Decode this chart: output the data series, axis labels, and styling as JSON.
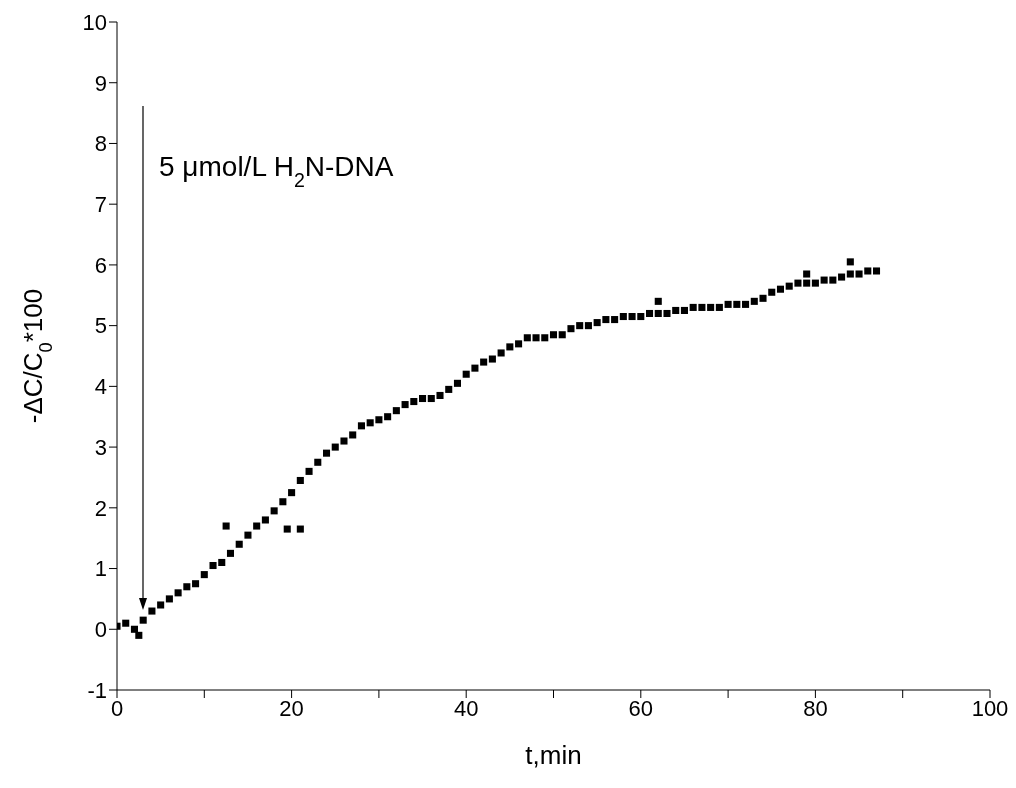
{
  "chart_data": {
    "type": "scatter",
    "xlabel": "t,min",
    "ylabel": "-ΔC/C$_{0}$*100",
    "annotations": [
      "5 μmol/L H$_{2}$N-DNA"
    ],
    "x": [
      0,
      1,
      2,
      2.5,
      3,
      4,
      5,
      6,
      7,
      8,
      9,
      10,
      11,
      12,
      12.5,
      13,
      14,
      15,
      16,
      17,
      18,
      19,
      19.5,
      20,
      21,
      21,
      22,
      23,
      24,
      25,
      26,
      27,
      28,
      29,
      30,
      31,
      32,
      33,
      34,
      35,
      36,
      37,
      38,
      39,
      40,
      41,
      42,
      43,
      44,
      45,
      46,
      47,
      48,
      49,
      50,
      51,
      52,
      53,
      54,
      55,
      56,
      57,
      58,
      59,
      60,
      61,
      62,
      62,
      63,
      64,
      65,
      66,
      67,
      68,
      69,
      70,
      71,
      72,
      73,
      74,
      75,
      76,
      77,
      78,
      79,
      79,
      80,
      81,
      82,
      83,
      84,
      84,
      85,
      86,
      87
    ],
    "values": [
      0.05,
      0.1,
      0.0,
      -0.1,
      0.15,
      0.3,
      0.4,
      0.5,
      0.6,
      0.7,
      0.75,
      0.9,
      1.05,
      1.1,
      1.7,
      1.25,
      1.4,
      1.55,
      1.7,
      1.8,
      1.95,
      2.1,
      1.65,
      2.25,
      2.45,
      1.65,
      2.6,
      2.75,
      2.9,
      3.0,
      3.1,
      3.2,
      3.35,
      3.4,
      3.45,
      3.5,
      3.6,
      3.7,
      3.75,
      3.8,
      3.8,
      3.85,
      3.95,
      4.05,
      4.2,
      4.3,
      4.4,
      4.45,
      4.55,
      4.65,
      4.7,
      4.8,
      4.8,
      4.8,
      4.85,
      4.85,
      4.95,
      5.0,
      5.0,
      5.05,
      5.1,
      5.1,
      5.15,
      5.15,
      5.15,
      5.2,
      5.2,
      5.4,
      5.2,
      5.25,
      5.25,
      5.3,
      5.3,
      5.3,
      5.3,
      5.35,
      5.35,
      5.35,
      5.4,
      5.45,
      5.55,
      5.6,
      5.65,
      5.7,
      5.7,
      5.85,
      5.7,
      5.75,
      5.75,
      5.8,
      5.85,
      6.05,
      5.85,
      5.9,
      5.9
    ],
    "color": "#000000",
    "marker": "square",
    "grid": false,
    "legend": false,
    "xlim": [
      0,
      100
    ],
    "xticks": [
      0,
      {
        "value": 10,
        "label": null
      },
      20,
      {
        "value": 30,
        "label": null
      },
      40,
      {
        "value": 50,
        "label": null
      },
      60,
      {
        "value": 70,
        "label": null
      },
      80,
      {
        "value": 90,
        "label": null
      },
      100
    ],
    "ylim": [
      -1,
      10
    ],
    "yticks": [
      -1,
      0,
      1,
      2,
      3,
      4,
      5,
      6,
      7,
      8,
      9,
      10
    ]
  }
}
